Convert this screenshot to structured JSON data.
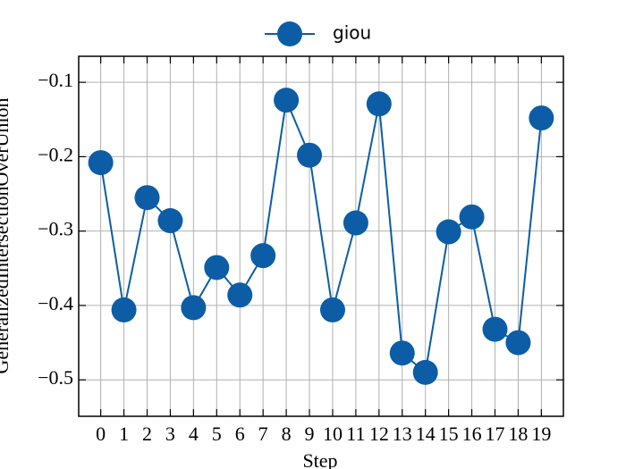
{
  "chart_data": {
    "type": "line",
    "x_label": "Step",
    "y_label": "GeneralizedIntersectionOverUnion",
    "x": [
      0,
      1,
      2,
      3,
      4,
      5,
      6,
      7,
      8,
      9,
      10,
      11,
      12,
      13,
      14,
      15,
      16,
      17,
      18,
      19
    ],
    "series": [
      {
        "name": "giou",
        "color": "#0C5DA5",
        "values": [
          -0.208,
          -0.406,
          -0.255,
          -0.286,
          -0.403,
          -0.349,
          -0.386,
          -0.333,
          -0.124,
          -0.198,
          -0.406,
          -0.289,
          -0.129,
          -0.464,
          -0.49,
          -0.301,
          -0.281,
          -0.432,
          -0.45,
          -0.148
        ]
      }
    ],
    "xlim": [
      -0.95,
      19.95
    ],
    "xticks": [
      0,
      1,
      2,
      3,
      4,
      5,
      6,
      7,
      8,
      9,
      10,
      11,
      12,
      13,
      14,
      15,
      16,
      17,
      18,
      19
    ],
    "ylim": [
      -0.549,
      -0.065
    ],
    "yticks": [
      {
        "value": -0.5,
        "label": "−0.5"
      },
      {
        "value": -0.4,
        "label": "−0.4"
      },
      {
        "value": -0.3,
        "label": "−0.3"
      },
      {
        "value": -0.2,
        "label": "−0.2"
      },
      {
        "value": -0.1,
        "label": "−0.1"
      }
    ],
    "grid": true,
    "legend": "top"
  }
}
